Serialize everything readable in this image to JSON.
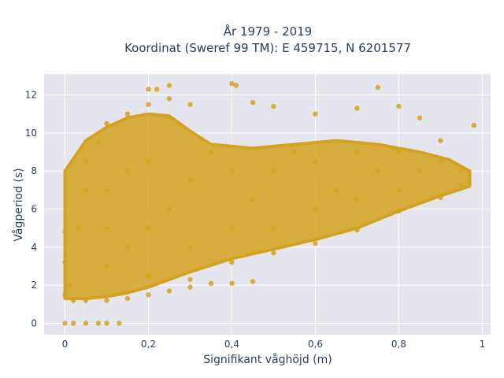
{
  "chart_data": {
    "type": "scatter",
    "title_line1": "År 1979 - 2019",
    "title_line2": "Koordinat (Sweref 99 TM): E 459715, N 6201577",
    "xlabel": "Signifikant våghöjd (m)",
    "ylabel": "Vågperiod (s)",
    "xlim": [
      -0.05,
      1.02
    ],
    "ylim": [
      -0.6,
      13.1
    ],
    "xticks": [
      0,
      0.2,
      0.4,
      0.6,
      0.8,
      1
    ],
    "xtick_labels": [
      "0",
      "0,2",
      "0,4",
      "0,6",
      "0,8",
      "1"
    ],
    "yticks": [
      0,
      2,
      4,
      6,
      8,
      10,
      12
    ],
    "ytick_labels": [
      "0",
      "2",
      "4",
      "6",
      "8",
      "10",
      "12"
    ],
    "grid": true,
    "marker_color": "#D4A21F",
    "plot_background": "#E5E5F0",
    "series": [
      {
        "points": [
          [
            0.0,
            0.0
          ],
          [
            0.02,
            0.0
          ],
          [
            0.05,
            0.0
          ],
          [
            0.08,
            0.0
          ],
          [
            0.1,
            0.0
          ],
          [
            0.13,
            0.0
          ],
          [
            0.0,
            4.8
          ],
          [
            0.0,
            3.2
          ],
          [
            0.01,
            2.0
          ],
          [
            0.0,
            1.5
          ],
          [
            0.02,
            1.2
          ],
          [
            0.05,
            1.2
          ],
          [
            0.1,
            1.2
          ],
          [
            0.15,
            1.3
          ],
          [
            0.2,
            1.5
          ],
          [
            0.25,
            1.7
          ],
          [
            0.3,
            1.9
          ],
          [
            0.35,
            2.1
          ],
          [
            0.4,
            2.1
          ],
          [
            0.45,
            2.2
          ],
          [
            0.3,
            2.3
          ],
          [
            0.4,
            3.2
          ],
          [
            0.5,
            3.7
          ],
          [
            0.6,
            4.2
          ],
          [
            0.7,
            4.9
          ],
          [
            0.8,
            5.9
          ],
          [
            0.9,
            6.6
          ],
          [
            0.95,
            7.3
          ],
          [
            0.03,
            5.0
          ],
          [
            0.05,
            7.0
          ],
          [
            0.05,
            8.5
          ],
          [
            0.08,
            9.5
          ],
          [
            0.1,
            10.5
          ],
          [
            0.15,
            11.0
          ],
          [
            0.2,
            11.5
          ],
          [
            0.2,
            12.3
          ],
          [
            0.22,
            12.3
          ],
          [
            0.25,
            11.8
          ],
          [
            0.25,
            12.5
          ],
          [
            0.3,
            11.5
          ],
          [
            0.4,
            12.6
          ],
          [
            0.41,
            12.5
          ],
          [
            0.45,
            11.6
          ],
          [
            0.5,
            11.4
          ],
          [
            0.6,
            11.0
          ],
          [
            0.7,
            11.3
          ],
          [
            0.75,
            12.4
          ],
          [
            0.8,
            11.4
          ],
          [
            0.85,
            10.8
          ],
          [
            0.9,
            9.6
          ],
          [
            0.98,
            10.4
          ],
          [
            0.1,
            3.0
          ],
          [
            0.1,
            5.0
          ],
          [
            0.1,
            7.0
          ],
          [
            0.15,
            4.0
          ],
          [
            0.15,
            8.0
          ],
          [
            0.2,
            2.5
          ],
          [
            0.2,
            5.0
          ],
          [
            0.2,
            8.5
          ],
          [
            0.25,
            6.0
          ],
          [
            0.3,
            4.0
          ],
          [
            0.3,
            7.5
          ],
          [
            0.35,
            9.0
          ],
          [
            0.4,
            5.0
          ],
          [
            0.4,
            8.0
          ],
          [
            0.45,
            6.5
          ],
          [
            0.5,
            5.0
          ],
          [
            0.5,
            8.0
          ],
          [
            0.55,
            9.0
          ],
          [
            0.6,
            6.0
          ],
          [
            0.6,
            8.5
          ],
          [
            0.65,
            7.0
          ],
          [
            0.7,
            6.5
          ],
          [
            0.7,
            9.0
          ],
          [
            0.75,
            8.0
          ],
          [
            0.8,
            7.0
          ],
          [
            0.8,
            9.0
          ],
          [
            0.85,
            8.0
          ],
          [
            0.9,
            8.5
          ],
          [
            0.95,
            8.0
          ]
        ]
      }
    ]
  }
}
